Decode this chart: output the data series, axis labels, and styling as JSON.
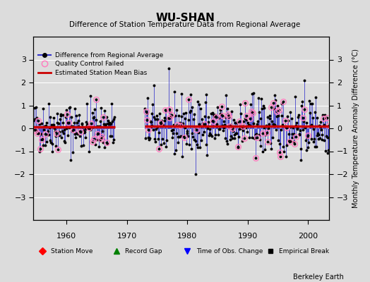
{
  "title": "WU-SHAN",
  "subtitle": "Difference of Station Temperature Data from Regional Average",
  "ylabel_right": "Monthly Temperature Anomaly Difference (°C)",
  "xlim": [
    1954.5,
    2003.5
  ],
  "ylim": [
    -4,
    4
  ],
  "yticks": [
    -3,
    -2,
    -1,
    0,
    1,
    2,
    3
  ],
  "xticks": [
    1960,
    1970,
    1980,
    1990,
    2000
  ],
  "background_color": "#dcdcdc",
  "plot_bg_color": "#dcdcdc",
  "line_color": "#3333cc",
  "bias_line_color": "#cc0000",
  "qc_fail_color": "#ff80c0",
  "data_color": "#000000",
  "grid_color": "#ffffff",
  "bias_segments": [
    {
      "xstart": 1954.5,
      "xend": 1968.0,
      "bias": 0.05
    },
    {
      "xstart": 1973.0,
      "xend": 2003.5,
      "bias": 0.1
    }
  ],
  "seg1_start": 1954.5,
  "seg1_end": 1968.0,
  "seg2_start": 1973.0,
  "seg2_end": 2003.5,
  "seg1_std": 0.55,
  "seg2_std": 0.65,
  "record_gap_x": 1971.0,
  "time_obs_change_x": 1973.0,
  "station_move_x": 1957.0,
  "seed1": 42,
  "seed2": 99,
  "qc1_count": 22,
  "qc2_count": 55
}
